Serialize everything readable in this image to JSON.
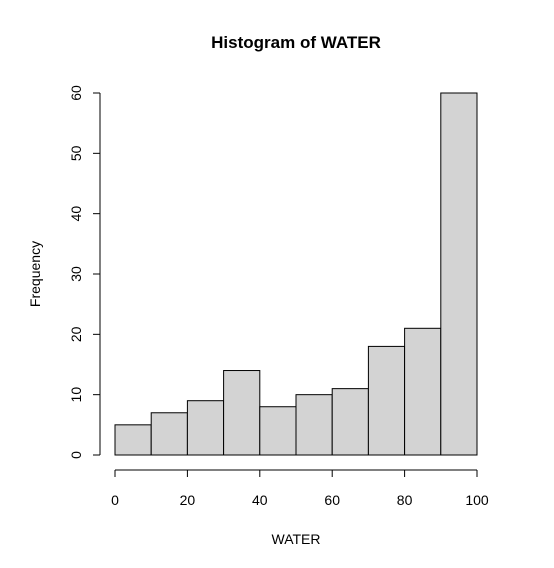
{
  "chart_data": {
    "type": "bar",
    "title": "Histogram of WATER",
    "xlabel": "WATER",
    "ylabel": "Frequency",
    "bins": [
      [
        0,
        10
      ],
      [
        10,
        20
      ],
      [
        20,
        30
      ],
      [
        30,
        40
      ],
      [
        40,
        50
      ],
      [
        50,
        60
      ],
      [
        60,
        70
      ],
      [
        70,
        80
      ],
      [
        80,
        90
      ],
      [
        90,
        100
      ]
    ],
    "values": [
      5,
      7,
      9,
      14,
      8,
      10,
      11,
      18,
      21,
      60
    ],
    "xlim": [
      0,
      100
    ],
    "ylim": [
      0,
      60
    ],
    "xticks": [
      "0",
      "20",
      "40",
      "60",
      "80",
      "100"
    ],
    "yticks": [
      "0",
      "10",
      "20",
      "30",
      "40",
      "50",
      "60"
    ],
    "bar_color": "#d3d3d3",
    "grid": false,
    "legend": "none"
  }
}
